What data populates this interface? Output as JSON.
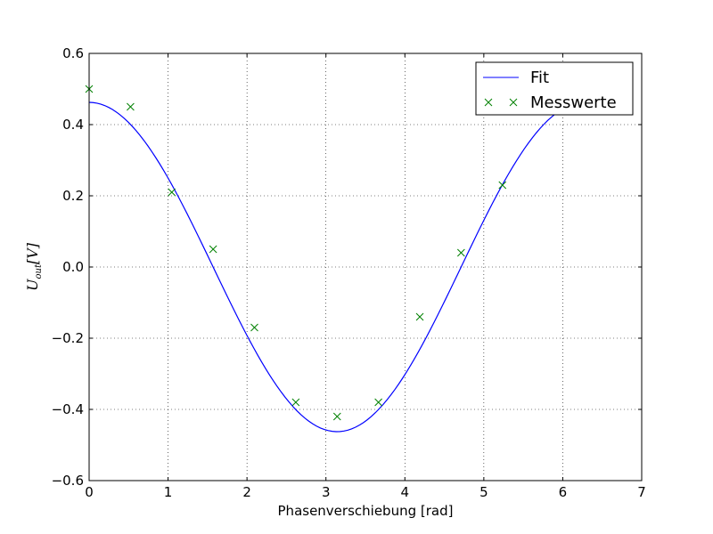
{
  "chart_data": {
    "type": "line",
    "xlabel": "Phasenverschiebung [rad]",
    "ylabel": {
      "main": "U",
      "sub": "out",
      "unit": "[V]"
    },
    "xlim": [
      0,
      7
    ],
    "ylim": [
      -0.6,
      0.6
    ],
    "xticks": [
      0,
      1,
      2,
      3,
      4,
      5,
      6,
      7
    ],
    "yticks": [
      -0.6,
      -0.4,
      -0.2,
      0.0,
      0.2,
      0.4,
      0.6
    ],
    "xtick_labels": [
      "0",
      "1",
      "2",
      "3",
      "4",
      "5",
      "6",
      "7"
    ],
    "ytick_labels": [
      "−0.6",
      "−0.4",
      "−0.2",
      "0.0",
      "0.2",
      "0.4",
      "0.6"
    ],
    "grid": true,
    "legend_position": "top-right",
    "series": [
      {
        "name": "Fit",
        "kind": "line",
        "color": "#0000ff",
        "amplitude": 0.4625,
        "phase": 0.0,
        "offset": 0.0,
        "x_range": [
          0,
          5.96
        ]
      },
      {
        "name": "Messwerte",
        "kind": "scatter",
        "marker": "x",
        "color": "#008000",
        "x": [
          0.0,
          0.524,
          1.047,
          1.571,
          2.094,
          2.618,
          3.142,
          3.665,
          4.189,
          4.712,
          5.236
        ],
        "y": [
          0.5,
          0.45,
          0.21,
          0.05,
          -0.17,
          -0.38,
          -0.42,
          -0.38,
          -0.14,
          0.04,
          0.23
        ]
      }
    ]
  }
}
